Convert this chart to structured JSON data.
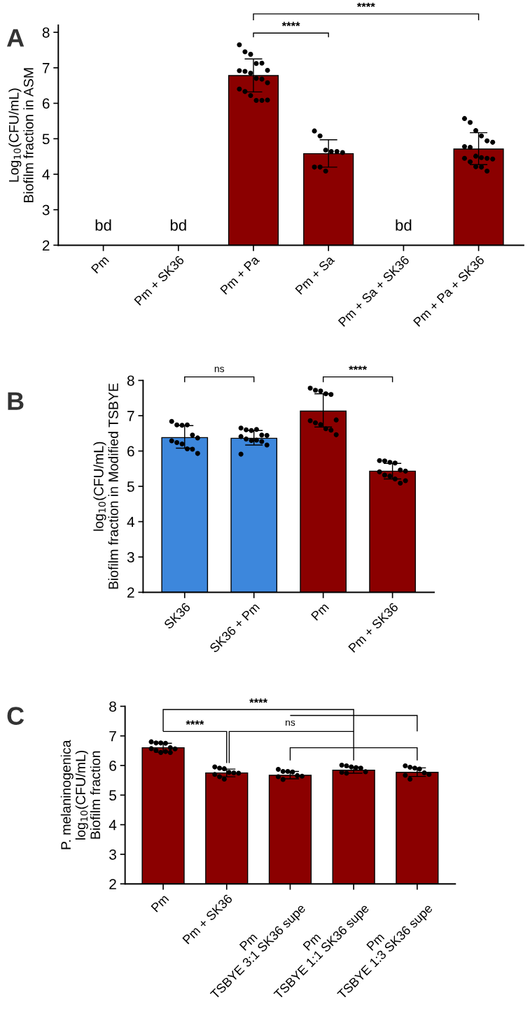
{
  "chart_data": [
    {
      "type": "bar",
      "title": "A",
      "categories": [
        "Pm",
        "Pm + SK36",
        "Pm + Pa",
        "Pm + Sa",
        "Pm + Sa + SK36",
        "Pm + Pa + SK36"
      ],
      "ylabel": "Log$_{10}$(CFU/mL)\nBiofilm fraction in ASM",
      "ylim": [
        2,
        8.2
      ],
      "yticks": [
        2,
        3,
        4,
        5,
        6,
        7,
        8
      ],
      "grid": false,
      "marker": "circle",
      "series": [
        {
          "colors": [
            "#8b0000",
            "#8b0000",
            "#8b0000",
            "#8b0000",
            "#8b0000",
            "#8b0000"
          ],
          "values": [
            null,
            null,
            6.78,
            4.58,
            null,
            4.71
          ],
          "errors": [
            null,
            null,
            [
              6.32,
              7.25
            ],
            [
              4.2,
              4.97
            ],
            null,
            [
              4.27,
              5.17
            ]
          ]
        },
        {
          "type": "scatter",
          "color": "#000000",
          "x": [
            "Pm + Pa",
            "Pm + Pa",
            "Pm + Pa",
            "Pm + Pa",
            "Pm + Pa",
            "Pm + Pa",
            "Pm + Pa",
            "Pm + Pa",
            "Pm + Pa",
            "Pm + Pa",
            "Pm + Pa",
            "Pm + Pa",
            "Pm + Pa",
            "Pm + Pa",
            "Pm + Pa",
            "Pm + Pa",
            "Pm + Pa",
            "Pm + Pa"
          ],
          "values": [
            7.65,
            7.45,
            7.38,
            7.12,
            7.13,
            6.93,
            6.92,
            6.9,
            6.85,
            6.7,
            6.68,
            6.58,
            6.4,
            6.33,
            6.22,
            6.08,
            6.08,
            6.09
          ]
        },
        {
          "type": "scatter",
          "color": "#000000",
          "x": [
            "Pm + Sa",
            "Pm + Sa",
            "Pm + Sa",
            "Pm + Sa",
            "Pm + Sa",
            "Pm + Sa",
            "Pm + Sa",
            "Pm + Sa",
            "Pm + Sa"
          ],
          "values": [
            5.22,
            5.08,
            4.68,
            4.64,
            4.64,
            4.61,
            4.2,
            4.2,
            4.09
          ]
        },
        {
          "type": "scatter",
          "color": "#000000",
          "x": [
            "Pm + Pa + SK36",
            "Pm + Pa + SK36",
            "Pm + Pa + SK36",
            "Pm + Pa + SK36",
            "Pm + Pa + SK36",
            "Pm + Pa + SK36",
            "Pm + Pa + SK36",
            "Pm + Pa + SK36",
            "Pm + Pa + SK36",
            "Pm + Pa + SK36",
            "Pm + Pa + SK36",
            "Pm + Pa + SK36",
            "Pm + Pa + SK36",
            "Pm + Pa + SK36",
            "Pm + Pa + SK36",
            "Pm + Pa + SK36",
            "Pm + Pa + SK36"
          ],
          "values": [
            5.57,
            5.46,
            5.23,
            5.08,
            4.94,
            4.9,
            4.78,
            4.76,
            4.51,
            4.47,
            4.45,
            4.43,
            4.45,
            4.35,
            4.21,
            4.2,
            4.09
          ]
        }
      ],
      "annotations": [
        "bd",
        "bd",
        "bd",
        "****",
        "****"
      ]
    },
    {
      "type": "bar",
      "title": "B",
      "categories": [
        "SK36",
        "SK36 + Pm",
        "Pm",
        "Pm + SK36"
      ],
      "ylabel": "log$_{10}$(CFU/mL)\nBiofilm fraction in Modified TSBYE",
      "ylim": [
        2,
        8
      ],
      "yticks": [
        2,
        3,
        4,
        5,
        6,
        7,
        8
      ],
      "grid": false,
      "marker": "circle",
      "series": [
        {
          "colors": [
            "#3d87dc",
            "#3d87dc",
            "#8b0000",
            "#8b0000"
          ],
          "values": [
            6.38,
            6.36,
            7.13,
            5.43
          ],
          "errors": [
            [
              6.08,
              6.72
            ],
            [
              6.17,
              6.58
            ],
            [
              6.68,
              7.62
            ],
            [
              5.21,
              5.65
            ]
          ]
        },
        {
          "type": "scatter",
          "color": "#000000",
          "x": [
            "SK36",
            "SK36",
            "SK36",
            "SK36",
            "SK36",
            "SK36",
            "SK36",
            "SK36",
            "SK36",
            "SK36",
            "SK36",
            "SK36"
          ],
          "values": [
            6.84,
            6.74,
            6.73,
            6.74,
            6.45,
            6.37,
            6.29,
            6.24,
            6.2,
            6.06,
            6.05,
            5.93
          ]
        },
        {
          "type": "scatter",
          "color": "#000000",
          "x": [
            "SK36 + Pm",
            "SK36 + Pm",
            "SK36 + Pm",
            "SK36 + Pm",
            "SK36 + Pm",
            "SK36 + Pm",
            "SK36 + Pm",
            "SK36 + Pm",
            "SK36 + Pm",
            "SK36 + Pm",
            "SK36 + Pm",
            "SK36 + Pm",
            "SK36 + Pm"
          ],
          "values": [
            6.65,
            6.6,
            6.58,
            6.61,
            6.45,
            6.44,
            6.41,
            6.34,
            6.3,
            6.31,
            6.27,
            6.17,
            5.91
          ]
        },
        {
          "type": "scatter",
          "color": "#000000",
          "x": [
            "Pm",
            "Pm",
            "Pm",
            "Pm",
            "Pm",
            "Pm",
            "Pm",
            "Pm",
            "Pm",
            "Pm",
            "Pm",
            "Pm"
          ],
          "values": [
            7.78,
            7.72,
            7.7,
            7.62,
            7.6,
            6.88,
            6.86,
            6.8,
            6.75,
            6.63,
            6.59,
            6.46
          ]
        },
        {
          "type": "scatter",
          "color": "#000000",
          "x": [
            "Pm + SK36",
            "Pm + SK36",
            "Pm + SK36",
            "Pm + SK36",
            "Pm + SK36",
            "Pm + SK36",
            "Pm + SK36",
            "Pm + SK36",
            "Pm + SK36",
            "Pm + SK36",
            "Pm + SK36",
            "Pm + SK36"
          ],
          "values": [
            5.73,
            5.72,
            5.68,
            5.66,
            5.46,
            5.43,
            5.41,
            5.32,
            5.29,
            5.21,
            5.09,
            5.16
          ]
        }
      ],
      "annotations": [
        "ns",
        "****"
      ]
    },
    {
      "type": "bar",
      "title": "C",
      "categories": [
        "Pm",
        "Pm + SK36",
        "Pm\nTSBYE 3:1 SK36 supe",
        "Pm\nTSBYE 1:1 SK36 supe",
        "Pm\nTSBYE 1:3 SK36 supe"
      ],
      "ylabel": "P. melaninogenica\nlog$_{10}$(CFU/mL)\nBiofilm fraction",
      "ylim": [
        2,
        8
      ],
      "yticks": [
        2,
        3,
        4,
        5,
        6,
        7,
        8
      ],
      "grid": false,
      "marker": "circle",
      "series": [
        {
          "colors": [
            "#8b0000",
            "#8b0000",
            "#8b0000",
            "#8b0000",
            "#8b0000"
          ],
          "values": [
            6.6,
            5.75,
            5.67,
            5.84,
            5.77
          ],
          "errors": [
            [
              6.45,
              6.75
            ],
            [
              5.62,
              5.88
            ],
            [
              5.55,
              5.8
            ],
            [
              5.74,
              5.95
            ],
            [
              5.63,
              5.92
            ]
          ]
        },
        {
          "type": "scatter",
          "color": "#000000",
          "x": [
            "Pm",
            "Pm",
            "Pm",
            "Pm",
            "Pm",
            "Pm",
            "Pm",
            "Pm",
            "Pm",
            "Pm",
            "Pm"
          ],
          "values": [
            6.8,
            6.76,
            6.76,
            6.75,
            6.6,
            6.56,
            6.57,
            6.51,
            6.44,
            6.47,
            6.44
          ]
        },
        {
          "type": "scatter",
          "color": "#000000",
          "x": [
            "Pm + SK36",
            "Pm + SK36",
            "Pm + SK36",
            "Pm + SK36",
            "Pm + SK36",
            "Pm + SK36",
            "Pm + SK36",
            "Pm + SK36",
            "Pm + SK36"
          ],
          "values": [
            5.95,
            5.91,
            5.89,
            5.77,
            5.75,
            5.74,
            5.7,
            5.62,
            5.54
          ]
        },
        {
          "type": "scatter",
          "color": "#000000",
          "x": [
            "Pm\nTSBYE 3:1 SK36 supe",
            "Pm\nTSBYE 3:1 SK36 supe",
            "Pm\nTSBYE 3:1 SK36 supe",
            "Pm\nTSBYE 3:1 SK36 supe",
            "Pm\nTSBYE 3:1 SK36 supe",
            "Pm\nTSBYE 3:1 SK36 supe",
            "Pm\nTSBYE 3:1 SK36 supe",
            "Pm\nTSBYE 3:1 SK36 supe"
          ],
          "values": [
            5.87,
            5.8,
            5.8,
            5.78,
            5.66,
            5.64,
            5.62,
            5.53
          ]
        },
        {
          "type": "scatter",
          "color": "#000000",
          "x": [
            "Pm\nTSBYE 1:1 SK36 supe",
            "Pm\nTSBYE 1:1 SK36 supe",
            "Pm\nTSBYE 1:1 SK36 supe",
            "Pm\nTSBYE 1:1 SK36 supe",
            "Pm\nTSBYE 1:1 SK36 supe",
            "Pm\nTSBYE 1:1 SK36 supe",
            "Pm\nTSBYE 1:1 SK36 supe",
            "Pm\nTSBYE 1:1 SK36 supe"
          ],
          "values": [
            6.01,
            5.99,
            5.95,
            5.93,
            5.91,
            5.79,
            5.77,
            5.74
          ]
        },
        {
          "type": "scatter",
          "color": "#000000",
          "x": [
            "Pm\nTSBYE 1:3 SK36 supe",
            "Pm\nTSBYE 1:3 SK36 supe",
            "Pm\nTSBYE 1:3 SK36 supe",
            "Pm\nTSBYE 1:3 SK36 supe",
            "Pm\nTSBYE 1:3 SK36 supe",
            "Pm\nTSBYE 1:3 SK36 supe",
            "Pm\nTSBYE 1:3 SK36 supe",
            "Pm\nTSBYE 1:3 SK36 supe"
          ],
          "values": [
            5.99,
            5.94,
            5.91,
            5.88,
            5.75,
            5.7,
            5.67,
            5.54
          ]
        }
      ],
      "annotations": [
        "****",
        "****",
        "ns"
      ]
    }
  ]
}
